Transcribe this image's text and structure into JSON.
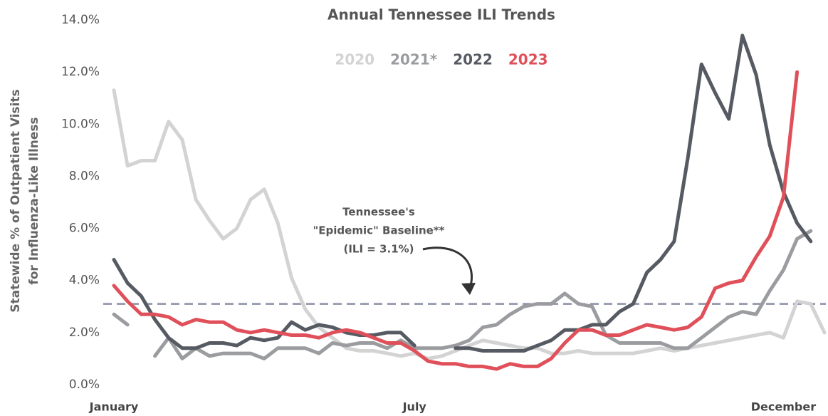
{
  "chart_data": {
    "type": "line",
    "title": "Annual Tennessee ILI Trends",
    "y_label": [
      "Statewide % of Outpatient Visits",
      "for Influenza-Like Illness"
    ],
    "categories": [
      "January",
      null,
      null,
      null,
      null,
      null,
      null,
      null,
      null,
      null,
      null,
      null,
      null,
      null,
      null,
      null,
      null,
      null,
      null,
      null,
      null,
      null,
      "July",
      null,
      null,
      null,
      null,
      null,
      null,
      null,
      null,
      null,
      null,
      null,
      null,
      null,
      null,
      null,
      null,
      null,
      null,
      null,
      null,
      null,
      null,
      null,
      null,
      null,
      null,
      "December",
      null,
      null,
      null
    ],
    "series": [
      {
        "name": "2020",
        "color": "#d3d3d3",
        "values": [
          11.3,
          8.4,
          8.6,
          8.6,
          10.1,
          9.4,
          7.1,
          6.3,
          5.6,
          6.0,
          7.1,
          7.5,
          6.2,
          4.1,
          2.9,
          2.2,
          1.8,
          1.4,
          1.3,
          1.3,
          1.2,
          1.1,
          1.2,
          1.0,
          1.1,
          1.3,
          1.5,
          1.7,
          1.6,
          1.5,
          1.4,
          1.4,
          1.2,
          1.2,
          1.3,
          1.2,
          1.2,
          1.2,
          1.2,
          1.3,
          1.4,
          1.3,
          1.4,
          1.5,
          1.6,
          1.7,
          1.8,
          1.9,
          2.0,
          1.8,
          3.2,
          3.1,
          2.0
        ]
      },
      {
        "name": "2021*",
        "color": "#9a9ca0",
        "values": [
          2.7,
          2.3,
          null,
          1.1,
          1.8,
          1.0,
          1.4,
          1.1,
          1.2,
          1.2,
          1.2,
          1.0,
          1.4,
          1.4,
          1.4,
          1.2,
          1.6,
          1.5,
          1.6,
          1.6,
          1.4,
          1.7,
          1.4,
          1.4,
          1.4,
          1.5,
          1.7,
          2.2,
          2.3,
          2.7,
          3.0,
          3.1,
          3.1,
          3.5,
          3.1,
          3.0,
          1.9,
          1.6,
          1.6,
          1.6,
          1.6,
          1.4,
          1.4,
          1.8,
          2.2,
          2.6,
          2.8,
          2.7,
          3.6,
          4.4,
          5.6,
          5.9,
          null
        ]
      },
      {
        "name": "2022",
        "color": "#565a62",
        "values": [
          4.8,
          3.9,
          3.4,
          2.5,
          1.8,
          1.4,
          1.4,
          1.6,
          1.6,
          1.5,
          1.8,
          1.7,
          1.8,
          2.4,
          2.1,
          2.3,
          2.2,
          2.0,
          1.9,
          1.9,
          2.0,
          2.0,
          1.5,
          null,
          null,
          1.4,
          1.4,
          1.3,
          1.3,
          1.3,
          1.3,
          1.5,
          1.7,
          2.1,
          2.1,
          2.3,
          2.3,
          2.8,
          3.1,
          4.3,
          4.8,
          5.5,
          8.7,
          12.3,
          11.2,
          10.2,
          13.4,
          11.9,
          9.2,
          7.4,
          6.2,
          5.5,
          null
        ]
      },
      {
        "name": "2023",
        "color": "#e0505a",
        "values": [
          3.8,
          3.2,
          2.7,
          2.7,
          2.6,
          2.3,
          2.5,
          2.4,
          2.4,
          2.1,
          2.0,
          2.1,
          2.0,
          1.9,
          1.9,
          1.8,
          2.0,
          2.1,
          2.0,
          1.8,
          1.6,
          1.6,
          1.3,
          0.9,
          0.8,
          0.8,
          0.7,
          0.7,
          0.6,
          0.8,
          0.7,
          0.7,
          1.0,
          1.6,
          2.1,
          2.1,
          1.9,
          1.9,
          2.1,
          2.3,
          2.2,
          2.1,
          2.2,
          2.6,
          3.7,
          3.9,
          4.0,
          4.9,
          5.7,
          7.2,
          12.0,
          null,
          null
        ]
      }
    ],
    "ylim": [
      0,
      14
    ],
    "yticks": [
      {
        "value": 0,
        "label": "0.0%"
      },
      {
        "value": 2,
        "label": "2.0%"
      },
      {
        "value": 4,
        "label": "4.0%"
      },
      {
        "value": 6,
        "label": "6.0%"
      },
      {
        "value": 8,
        "label": "8.0%"
      },
      {
        "value": 10,
        "label": "10.0%"
      },
      {
        "value": 12,
        "label": "12.0%"
      },
      {
        "value": 14,
        "label": "14.0%"
      }
    ],
    "baseline": 3.1,
    "annotation": [
      "Tennessee's",
      "\"Epidemic\" Baseline**",
      "(ILI = 3.1%)"
    ],
    "grid": false
  }
}
